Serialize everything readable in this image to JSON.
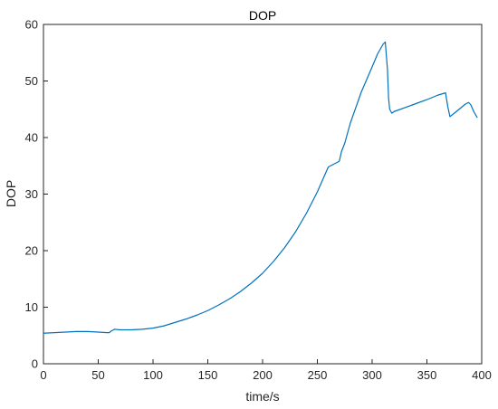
{
  "chart_data": {
    "type": "line",
    "title": "DOP",
    "xlabel": "time/s",
    "ylabel": "DOP",
    "xlim": [
      0,
      400
    ],
    "ylim": [
      0,
      60
    ],
    "xticks": [
      0,
      50,
      100,
      150,
      200,
      250,
      300,
      350,
      400
    ],
    "yticks": [
      0,
      10,
      20,
      30,
      40,
      50,
      60
    ],
    "xtick_labels": [
      "0",
      "50",
      "100",
      "150",
      "200",
      "250",
      "300",
      "350",
      "400"
    ],
    "ytick_labels": [
      "0",
      "10",
      "20",
      "30",
      "40",
      "50",
      "60"
    ],
    "grid": false,
    "legend": "none",
    "series": [
      {
        "color": "#0072BD",
        "x": [
          0,
          10,
          20,
          30,
          40,
          50,
          58,
          60,
          62,
          65,
          70,
          80,
          90,
          100,
          110,
          115,
          120,
          130,
          140,
          150,
          160,
          170,
          180,
          190,
          200,
          210,
          220,
          230,
          240,
          250,
          260,
          270,
          272,
          275,
          280,
          290,
          300,
          305,
          310,
          312,
          314,
          315,
          316,
          318,
          320,
          330,
          340,
          350,
          360,
          367,
          369,
          371,
          375,
          380,
          385,
          388,
          390,
          393,
          396
        ],
        "y": [
          5.4,
          5.5,
          5.6,
          5.7,
          5.7,
          5.6,
          5.5,
          5.5,
          5.8,
          6.1,
          6.0,
          6.0,
          6.1,
          6.3,
          6.7,
          7.0,
          7.3,
          7.9,
          8.6,
          9.4,
          10.4,
          11.5,
          12.8,
          14.3,
          16.0,
          18.1,
          20.5,
          23.3,
          26.6,
          30.4,
          34.8,
          35.8,
          37.5,
          39.0,
          42.5,
          48.0,
          52.5,
          54.8,
          56.5,
          56.9,
          52.0,
          47.0,
          45.0,
          44.3,
          44.6,
          45.3,
          46.0,
          46.7,
          47.5,
          47.9,
          45.5,
          43.7,
          44.3,
          45.1,
          45.9,
          46.2,
          45.8,
          44.5,
          43.5
        ]
      }
    ]
  }
}
